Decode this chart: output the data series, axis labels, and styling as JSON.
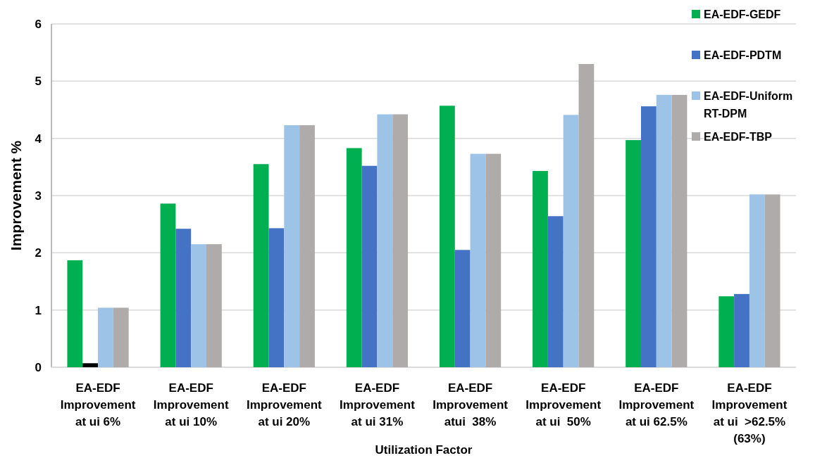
{
  "chart_data": {
    "type": "bar",
    "xlabel": "Utilization Factor",
    "ylabel": "Improvement %",
    "categories": [
      "EA-EDF\nImprovement\nat ui 6%",
      "EA-EDF\nImprovement\nat ui 10%",
      "EA-EDF\nImprovement\nat ui 20%",
      "EA-EDF\nImprovement\nat ui 31%",
      "EA-EDF\nImprovement\natui  38%",
      "EA-EDF\nImprovement\nat ui  50%",
      "EA-EDF\nImprovement\nat ui 62.5%",
      "EA-EDF\nImprovement\nat ui  >62.5%\n(63%)"
    ],
    "series": [
      {
        "name": "EA-EDF-GEDF",
        "color": "#00b050",
        "values": [
          1.87,
          2.86,
          3.55,
          3.83,
          4.57,
          3.43,
          3.97,
          1.24
        ]
      },
      {
        "name": "EA-EDF-PDTM",
        "color": "#4472c4",
        "colors": [
          "#000000",
          "#4472c4",
          "#4472c4",
          "#4472c4",
          "#4472c4",
          "#4472c4",
          "#4472c4",
          "#4472c4"
        ],
        "values": [
          0.07,
          2.42,
          2.43,
          3.52,
          2.05,
          2.64,
          4.56,
          1.28
        ]
      },
      {
        "name": "EA-EDF-Uniform RT-DPM",
        "color": "#9dc3e6",
        "values": [
          1.04,
          2.15,
          4.23,
          4.42,
          3.73,
          4.41,
          4.76,
          3.02
        ]
      },
      {
        "name": "EA-EDF-TBP",
        "color": "#afabab",
        "values": [
          1.04,
          2.15,
          4.23,
          4.42,
          3.73,
          5.3,
          4.76,
          3.02
        ]
      }
    ],
    "ylim": [
      0,
      6
    ],
    "yticks": [
      0,
      1,
      2,
      3,
      4,
      5,
      6
    ],
    "grid": "y",
    "legend": "top right"
  }
}
